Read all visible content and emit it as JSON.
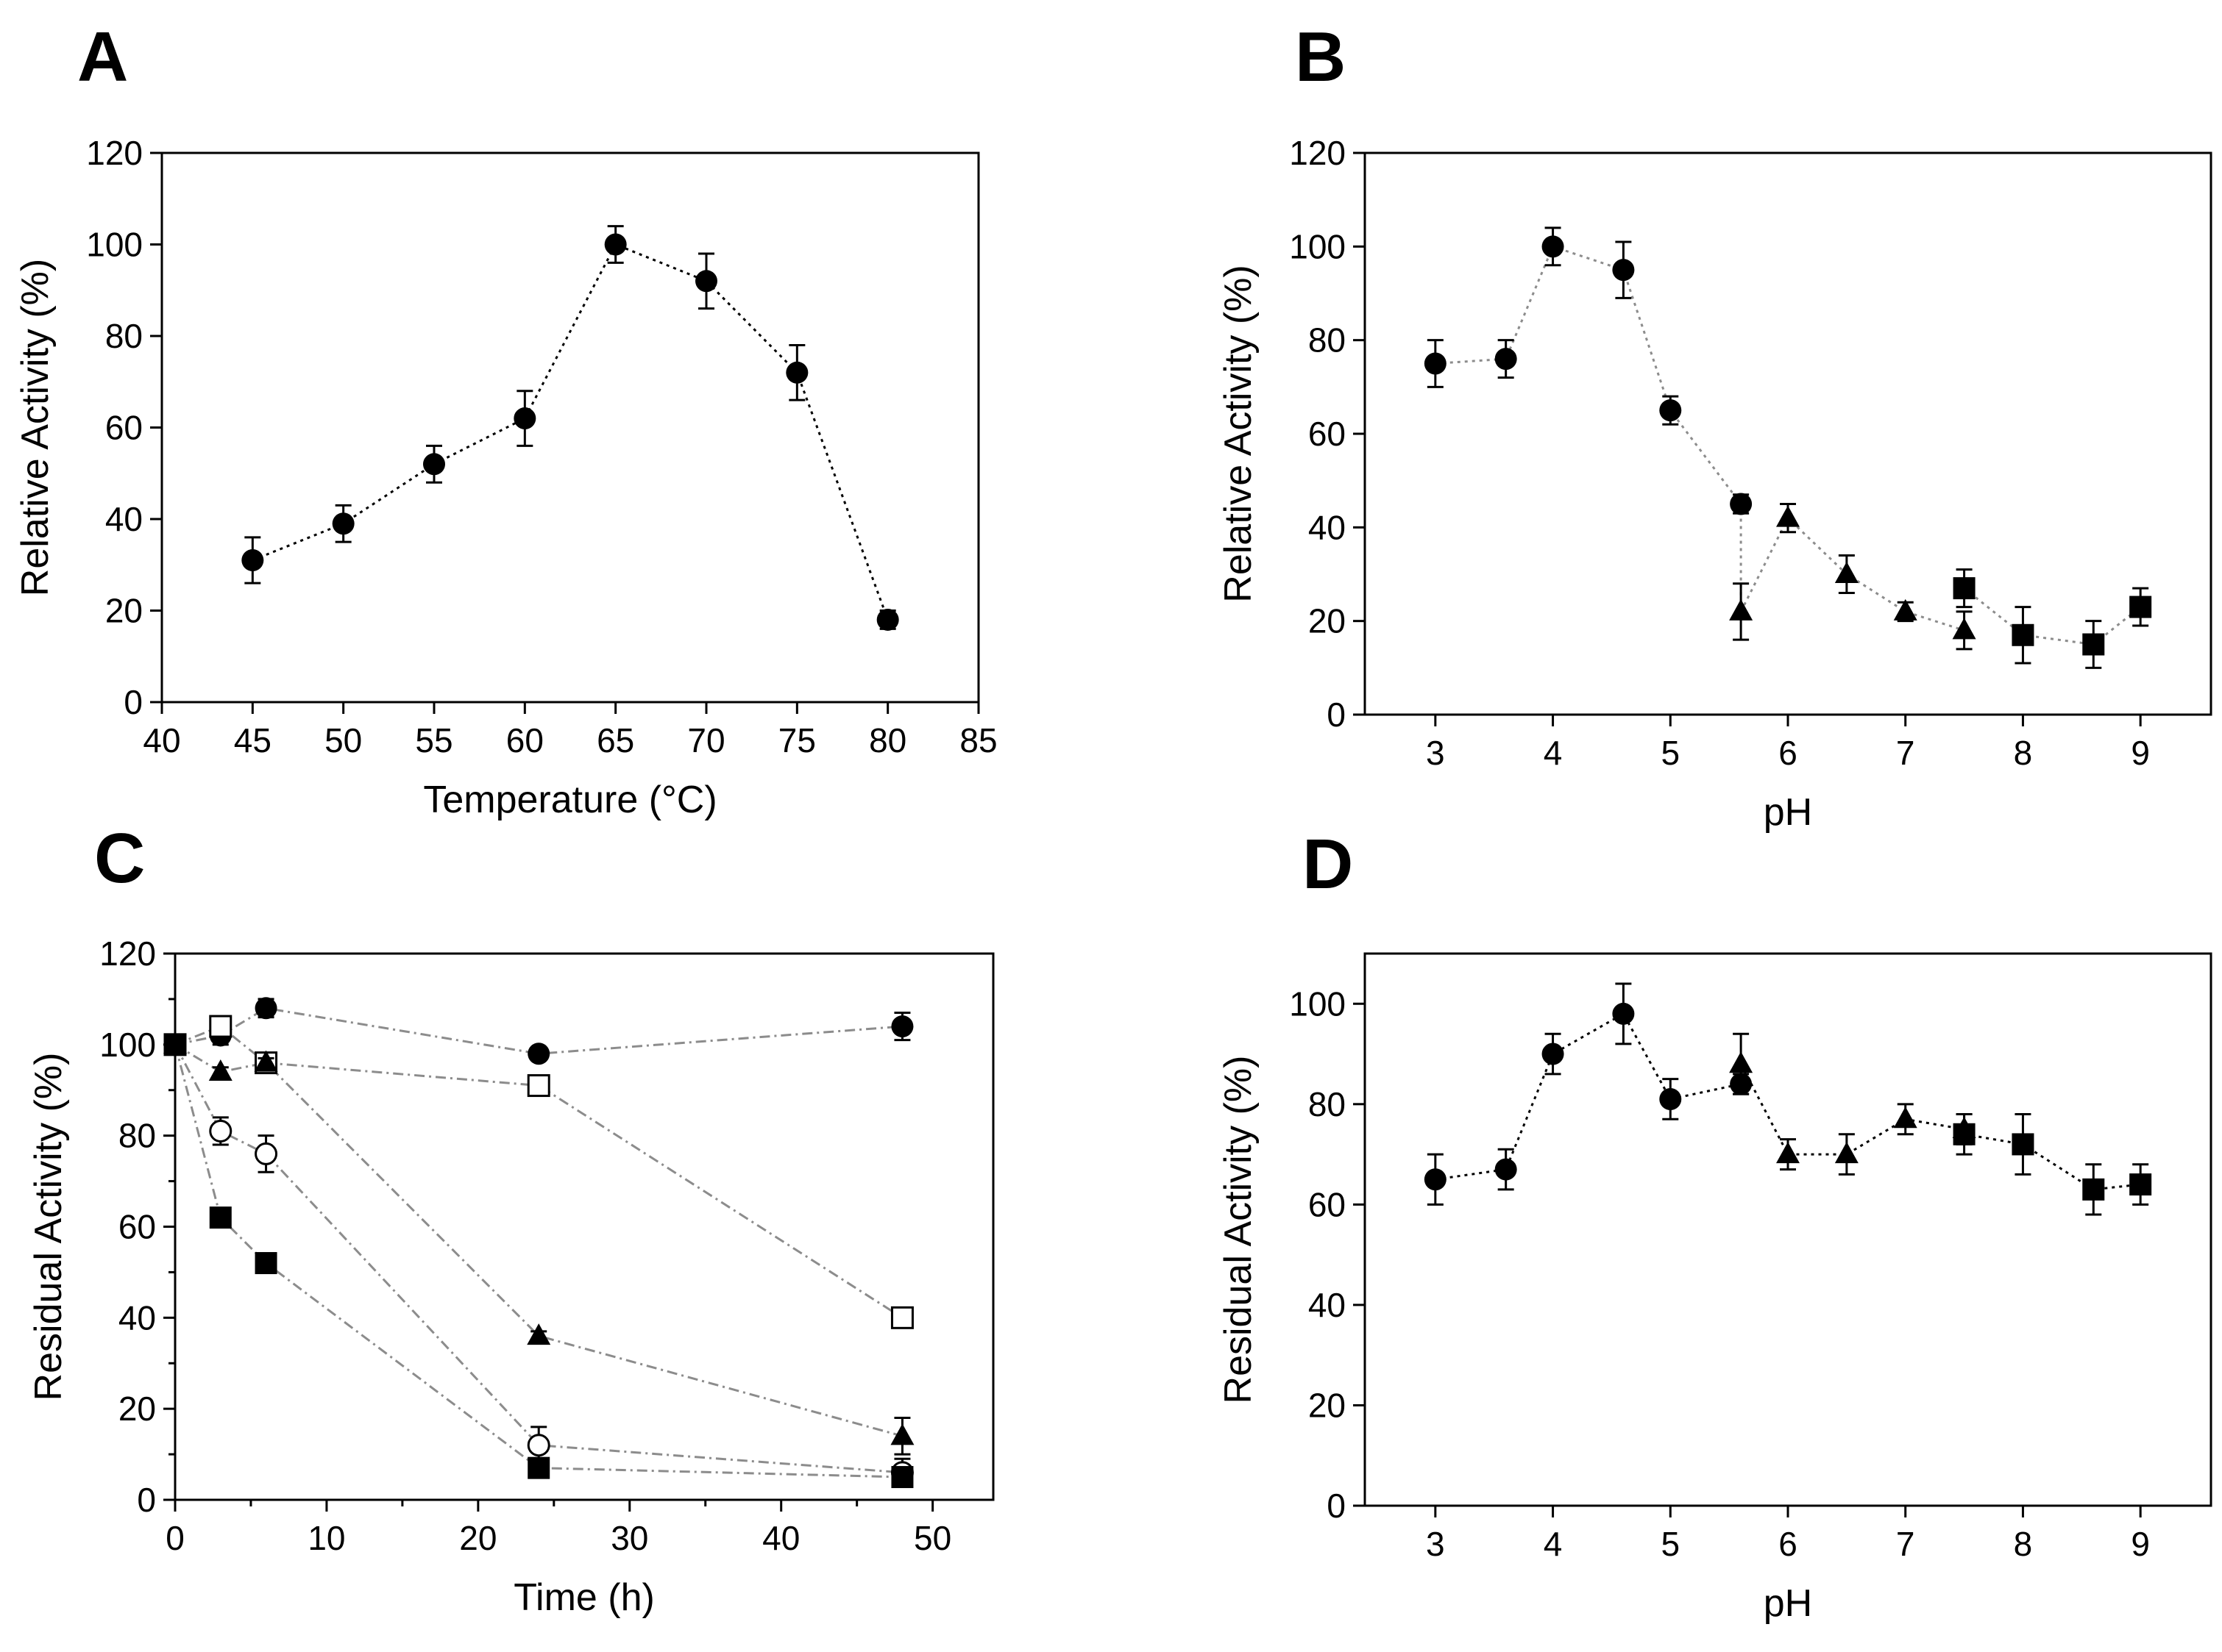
{
  "figure": {
    "colors": {
      "ink": "#000000",
      "line_black": "#000000",
      "line_grey": "#8c8c8c",
      "background": "#ffffff"
    }
  },
  "chart_data": [
    {
      "id": "A",
      "panel_label": "A",
      "type": "line",
      "title": "",
      "xlabel": "Temperature (°C)",
      "ylabel": "Relative Activity (%)",
      "xlim": [
        40,
        85
      ],
      "ylim": [
        0,
        120
      ],
      "xticks": [
        "40",
        "45",
        "50",
        "55",
        "60",
        "65",
        "70",
        "75",
        "80",
        "85"
      ],
      "yticks": [
        "0",
        "20",
        "40",
        "60",
        "80",
        "100",
        "120"
      ],
      "x_minor_ticks": false,
      "y_minor_ticks": false,
      "grid": false,
      "series": [
        {
          "name": "activity",
          "marker": "filled-circle",
          "line": "black-dotted",
          "x": [
            45,
            50,
            55,
            60,
            65,
            70,
            75,
            80
          ],
          "y": [
            31,
            39,
            52,
            62,
            100,
            92,
            72,
            18
          ],
          "err": [
            5,
            4,
            4,
            6,
            4,
            6,
            6,
            2
          ]
        }
      ]
    },
    {
      "id": "B",
      "panel_label": "B",
      "type": "line",
      "title": "",
      "xlabel": "pH",
      "ylabel": "Relative Activity (%)",
      "xlim": [
        2.4,
        9.6
      ],
      "ylim": [
        0,
        120
      ],
      "xticks": [
        "3",
        "4",
        "5",
        "6",
        "7",
        "8",
        "9"
      ],
      "yticks": [
        "0",
        "20",
        "40",
        "60",
        "80",
        "100",
        "120"
      ],
      "x_minor_ticks": false,
      "y_minor_ticks": false,
      "grid": false,
      "series": [
        {
          "name": "circle series",
          "marker": "filled-circle",
          "line": "grey-dotted",
          "x": [
            3,
            3.6,
            4,
            4.6,
            5,
            5.6
          ],
          "y": [
            75,
            76,
            100,
            95,
            65,
            45
          ],
          "err": [
            5,
            4,
            4,
            6,
            3,
            2
          ]
        },
        {
          "name": "triangle series",
          "marker": "filled-triangle",
          "line": "grey-dotted",
          "x": [
            5.6,
            6,
            6.5,
            7,
            7.5
          ],
          "y": [
            22,
            42,
            30,
            22,
            18
          ],
          "err": [
            6,
            3,
            4,
            2,
            4
          ]
        },
        {
          "name": "square series",
          "marker": "filled-square",
          "line": "grey-dotted",
          "x": [
            7.5,
            8,
            8.6,
            9
          ],
          "y": [
            27,
            17,
            15,
            23
          ],
          "err": [
            4,
            6,
            5,
            4
          ]
        },
        {
          "name": "connector",
          "marker": "none",
          "line": "grey-dotted",
          "x": [
            5.6,
            5.6
          ],
          "y": [
            45,
            22
          ],
          "err": []
        }
      ]
    },
    {
      "id": "C",
      "panel_label": "C",
      "type": "line",
      "title": "",
      "xlabel": "Time (h)",
      "ylabel": "Residual Activity (%)",
      "xlim": [
        0,
        54
      ],
      "ylim": [
        0,
        120
      ],
      "xticks": [
        "0",
        "10",
        "20",
        "30",
        "40",
        "50"
      ],
      "yticks": [
        "0",
        "20",
        "40",
        "60",
        "80",
        "100",
        "120"
      ],
      "x_minor_ticks": true,
      "y_minor_ticks": true,
      "grid": false,
      "series": [
        {
          "name": "filled circle",
          "marker": "filled-circle",
          "line": "grey-dashed",
          "x": [
            0,
            3,
            6,
            24,
            48
          ],
          "y": [
            100,
            102,
            108,
            98,
            104
          ],
          "err": [
            0,
            2,
            2,
            1,
            3
          ]
        },
        {
          "name": "open square",
          "marker": "open-square",
          "line": "grey-dashed",
          "x": [
            0,
            3,
            6,
            24,
            48
          ],
          "y": [
            100,
            104,
            96,
            91,
            40
          ],
          "err": [
            0,
            2,
            1,
            1,
            1
          ]
        },
        {
          "name": "filled triangle",
          "marker": "filled-triangle",
          "line": "grey-dashed",
          "x": [
            0,
            3,
            6,
            24,
            48
          ],
          "y": [
            100,
            94,
            96,
            36,
            14
          ],
          "err": [
            0,
            1,
            1,
            1,
            4
          ]
        },
        {
          "name": "open circle",
          "marker": "open-circle",
          "line": "grey-dashed",
          "x": [
            0,
            3,
            6,
            24,
            48
          ],
          "y": [
            100,
            81,
            76,
            12,
            6
          ],
          "err": [
            0,
            3,
            4,
            4,
            3
          ]
        },
        {
          "name": "filled square",
          "marker": "filled-square",
          "line": "grey-dashed",
          "x": [
            0,
            3,
            6,
            24,
            48
          ],
          "y": [
            100,
            62,
            52,
            7,
            5
          ],
          "err": [
            0,
            1,
            1,
            1,
            1
          ]
        }
      ]
    },
    {
      "id": "D",
      "panel_label": "D",
      "type": "line",
      "title": "",
      "xlabel": "pH",
      "ylabel": "Residual Activity (%)",
      "xlim": [
        2.4,
        9.6
      ],
      "ylim": [
        0,
        110
      ],
      "xticks": [
        "3",
        "4",
        "5",
        "6",
        "7",
        "8",
        "9"
      ],
      "yticks": [
        "0",
        "20",
        "40",
        "60",
        "80",
        "100"
      ],
      "x_minor_ticks": false,
      "y_minor_ticks": false,
      "grid": false,
      "series": [
        {
          "name": "circle series",
          "marker": "filled-circle",
          "line": "black-dotted",
          "x": [
            3,
            3.6,
            4,
            4.6,
            5,
            5.6
          ],
          "y": [
            65,
            67,
            90,
            98,
            81,
            84
          ],
          "err": [
            5,
            4,
            4,
            6,
            4,
            2
          ]
        },
        {
          "name": "triangle series",
          "marker": "filled-triangle",
          "line": "black-dotted",
          "x": [
            5.6,
            6,
            6.5,
            7,
            7.5
          ],
          "y": [
            88,
            70,
            70,
            77,
            75
          ],
          "err": [
            6,
            3,
            4,
            3,
            3
          ]
        },
        {
          "name": "square series",
          "marker": "filled-square",
          "line": "black-dotted",
          "x": [
            7.5,
            8,
            8.6,
            9
          ],
          "y": [
            74,
            72,
            63,
            64
          ],
          "err": [
            4,
            6,
            5,
            4
          ]
        }
      ]
    }
  ]
}
